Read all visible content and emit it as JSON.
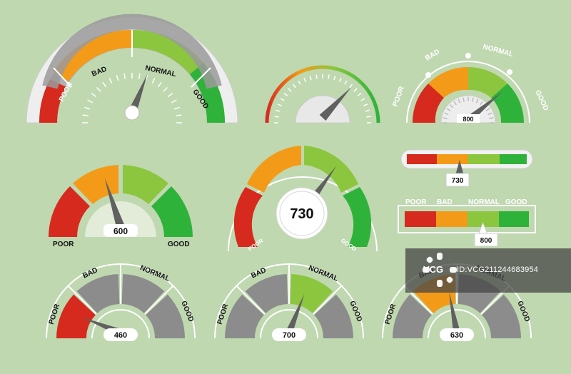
{
  "colors": {
    "background": "#bfd8b0",
    "poor": "#d62a1e",
    "bad": "#f39b18",
    "normal": "#8cc63f",
    "good": "#2fb23a",
    "inactive": "#8c8c8c",
    "panel": "#f2f2f2",
    "needle": "#606060"
  },
  "gauges": {
    "g1": {
      "labels": [
        "POOR",
        "BAD",
        "NORMAL",
        "GOOD"
      ],
      "needle_fraction": 0.62
    },
    "g2": {
      "needle_fraction": 0.74
    },
    "g3": {
      "labels": [
        "POOR",
        "BAD",
        "NORMAL",
        "GOOD"
      ],
      "value": "800",
      "needle_fraction": 0.78
    },
    "g4": {
      "labels": [
        "POOR",
        "GOOD"
      ],
      "value": "600",
      "needle_fraction": 0.4
    },
    "g5": {
      "labels": [
        "POOR",
        "GOOD"
      ],
      "value": "730",
      "needle_fraction": 0.7
    },
    "g6": {
      "value": "730",
      "needle_fraction": 0.44
    },
    "g7": {
      "labels": [
        "POOR",
        "BAD",
        "NORMAL",
        "GOOD"
      ],
      "value": "800",
      "needle_fraction": 0.63
    },
    "g8": {
      "labels": [
        "POOR",
        "BAD",
        "NORMAL",
        "GOOD"
      ],
      "value": "460",
      "active_segment": 0,
      "needle_fraction": 0.12
    },
    "g9": {
      "labels": [
        "POOR",
        "BAD",
        "NORMAL",
        "GOOD"
      ],
      "value": "700",
      "active_segment": 2,
      "needle_fraction": 0.62
    },
    "g10": {
      "labels": [
        "POOR",
        "BAD",
        "NORMAL",
        "GOOD"
      ],
      "value": "630",
      "active_segment": 1,
      "needle_fraction": 0.44
    }
  },
  "watermark": {
    "logo": "VCG",
    "text": "ID:VCG21124468395​4"
  }
}
